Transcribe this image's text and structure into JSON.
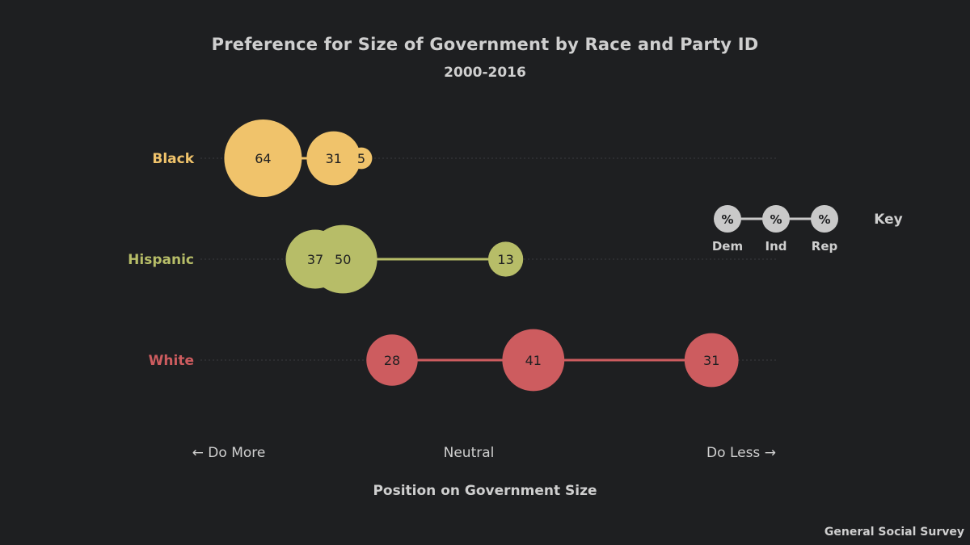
{
  "chart_data": {
    "type": "scatter",
    "title": "Preference for Size of Government by Race and Party ID",
    "subtitle": "2000-2016",
    "xlabel": "Position on Government Size",
    "x_ticks": [
      "← Do More",
      "Neutral",
      "Do Less →"
    ],
    "party_order": [
      "Dem",
      "Ind",
      "Rep"
    ],
    "rows": [
      {
        "name": "Black",
        "color": "#f0c36b",
        "points": [
          {
            "party": "Dem",
            "position": -0.67,
            "value": 64
          },
          {
            "party": "Ind",
            "position": -0.44,
            "value": 31
          },
          {
            "party": "Rep",
            "position": -0.35,
            "value": 5
          }
        ]
      },
      {
        "name": "Hispanic",
        "color": "#b7bd68",
        "points": [
          {
            "party": "Dem",
            "position": -0.5,
            "value": 37
          },
          {
            "party": "Ind",
            "position": -0.41,
            "value": 50
          },
          {
            "party": "Rep",
            "position": 0.12,
            "value": 13
          }
        ]
      },
      {
        "name": "White",
        "color": "#cd5c5f",
        "points": [
          {
            "party": "Dem",
            "position": -0.25,
            "value": 28
          },
          {
            "party": "Ind",
            "position": 0.21,
            "value": 41
          },
          {
            "party": "Rep",
            "position": 0.79,
            "value": 31
          }
        ]
      }
    ],
    "key": {
      "title": "Key",
      "symbol": "%",
      "labels": [
        "Dem",
        "Ind",
        "Rep"
      ],
      "color": "#c9c9c9"
    },
    "source": "General Social Survey",
    "grid": true
  }
}
